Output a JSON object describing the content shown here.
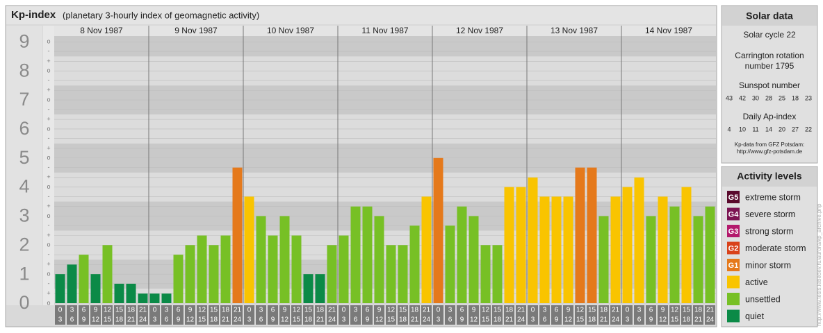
{
  "chart_data": {
    "type": "bar",
    "title": "Kp-index",
    "subtitle": "(planetary 3-hourly index of geomagnetic activity)",
    "ylim": [
      0,
      9.2
    ],
    "yticks": [
      0,
      1,
      2,
      3,
      4,
      5,
      6,
      7,
      8,
      9
    ],
    "minor_ticks": [
      {
        "value": 0,
        "label": "o"
      },
      {
        "value": 0.33,
        "label": "+"
      },
      {
        "value": 0.67,
        "label": "-"
      },
      {
        "value": 1,
        "label": "o"
      },
      {
        "value": 1.33,
        "label": "+"
      },
      {
        "value": 1.67,
        "label": "-"
      },
      {
        "value": 2,
        "label": "o"
      },
      {
        "value": 2.33,
        "label": "+"
      },
      {
        "value": 2.67,
        "label": "-"
      },
      {
        "value": 3,
        "label": "o"
      },
      {
        "value": 3.33,
        "label": "+"
      },
      {
        "value": 3.67,
        "label": "-"
      },
      {
        "value": 4,
        "label": "o"
      },
      {
        "value": 4.33,
        "label": "+"
      },
      {
        "value": 4.67,
        "label": "-"
      },
      {
        "value": 5,
        "label": "o"
      },
      {
        "value": 5.33,
        "label": "+"
      },
      {
        "value": 5.67,
        "label": "-"
      },
      {
        "value": 6,
        "label": "o"
      },
      {
        "value": 6.33,
        "label": "+"
      },
      {
        "value": 6.67,
        "label": "-"
      },
      {
        "value": 7,
        "label": "o"
      },
      {
        "value": 7.33,
        "label": "+"
      },
      {
        "value": 7.67,
        "label": "-"
      },
      {
        "value": 8,
        "label": "o"
      },
      {
        "value": 8.33,
        "label": "+"
      },
      {
        "value": 8.67,
        "label": "-"
      },
      {
        "value": 9,
        "label": "o"
      }
    ],
    "hours": [
      "0",
      "3",
      "6",
      "9",
      "12",
      "15",
      "18",
      "21",
      "24"
    ],
    "series": [
      {
        "name": "8 Nov 1987",
        "values": [
          1,
          1.33,
          1.67,
          1,
          2,
          0.67,
          0.67,
          0.33
        ],
        "colors": [
          "#0b8a47",
          "#0b8a47",
          "#77c025",
          "#0b8a47",
          "#77c025",
          "#0b8a47",
          "#0b8a47",
          "#0b8a47"
        ]
      },
      {
        "name": "9 Nov 1987",
        "values": [
          0.33,
          0.33,
          1.67,
          2,
          2.33,
          2,
          2.33,
          4.67
        ],
        "colors": [
          "#0b8a47",
          "#0b8a47",
          "#77c025",
          "#77c025",
          "#77c025",
          "#77c025",
          "#77c025",
          "#e5791b"
        ]
      },
      {
        "name": "10 Nov 1987",
        "values": [
          3.67,
          3,
          2.33,
          3,
          2.33,
          1,
          1,
          2
        ],
        "colors": [
          "#f9c400",
          "#77c025",
          "#77c025",
          "#77c025",
          "#77c025",
          "#0b8a47",
          "#0b8a47",
          "#77c025"
        ]
      },
      {
        "name": "11 Nov 1987",
        "values": [
          2.33,
          3.33,
          3.33,
          3,
          2,
          2,
          2.67,
          3.67
        ],
        "colors": [
          "#77c025",
          "#77c025",
          "#77c025",
          "#77c025",
          "#77c025",
          "#77c025",
          "#77c025",
          "#f9c400"
        ]
      },
      {
        "name": "12 Nov 1987",
        "values": [
          5,
          2.67,
          3.33,
          3,
          2,
          2,
          4,
          4
        ],
        "colors": [
          "#e5791b",
          "#77c025",
          "#77c025",
          "#77c025",
          "#77c025",
          "#77c025",
          "#f9c400",
          "#f9c400"
        ]
      },
      {
        "name": "13 Nov 1987",
        "values": [
          4.33,
          3.67,
          3.67,
          3.67,
          4.67,
          4.67,
          3,
          3.67
        ],
        "colors": [
          "#f9c400",
          "#f9c400",
          "#f9c400",
          "#f9c400",
          "#e5791b",
          "#e5791b",
          "#77c025",
          "#f9c400"
        ]
      },
      {
        "name": "14 Nov 1987",
        "values": [
          4,
          4.33,
          3,
          3.67,
          3.33,
          4,
          3,
          3.33
        ],
        "colors": [
          "#f9c400",
          "#f9c400",
          "#77c025",
          "#f9c400",
          "#77c025",
          "#f9c400",
          "#77c025",
          "#77c025"
        ]
      }
    ]
  },
  "solar": {
    "title": "Solar data",
    "cycle": "Solar cycle 22",
    "carrington": [
      "Carrington rotation",
      "number 1795"
    ],
    "sunspot_title": "Sunspot number",
    "sunspot": [
      43,
      42,
      30,
      28,
      25,
      18,
      23
    ],
    "ap_title": "Daily Ap-index",
    "ap": [
      4,
      10,
      11,
      14,
      20,
      27,
      22
    ],
    "source": [
      "Kp-data from GFZ Potsdam:",
      "http://www.gfz-potsdam.de"
    ]
  },
  "activity": {
    "title": "Activity levels",
    "levels": [
      {
        "code": "G5",
        "name": "extreme storm",
        "color": "#5a0a2c"
      },
      {
        "code": "G4",
        "name": "severe storm",
        "color": "#7c1452"
      },
      {
        "code": "G3",
        "name": "strong storm",
        "color": "#b3196c"
      },
      {
        "code": "G2",
        "name": "moderate storm",
        "color": "#d9421a"
      },
      {
        "code": "G1",
        "name": "minor storm",
        "color": "#e5791b"
      },
      {
        "name": "active",
        "color": "#f9c400"
      },
      {
        "name": "unsettled",
        "color": "#77c025"
      },
      {
        "name": "quiet",
        "color": "#0b8a47"
      }
    ]
  },
  "credit": "http://www.tesis.lebedev.ru/aurora/kp_archive.php"
}
